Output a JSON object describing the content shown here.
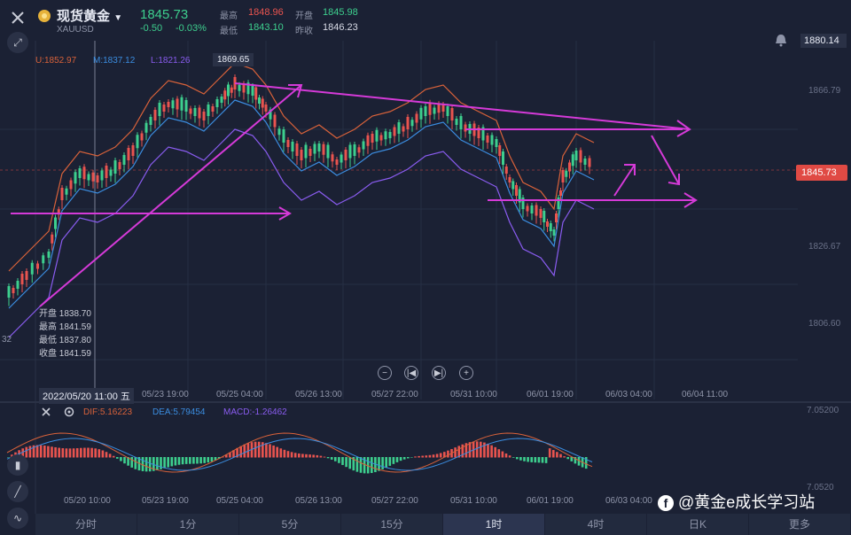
{
  "header": {
    "name": "现货黄金",
    "code": "XAUUSD",
    "price": "1845.73",
    "change": "-0.50",
    "change_pct": "-0.03%",
    "high_label": "最高",
    "high": "1848.96",
    "open_label": "开盘",
    "open": "1845.98",
    "low_label": "最低",
    "low": "1843.10",
    "prev_close_label": "昨收",
    "prev_close": "1846.23"
  },
  "indicators": {
    "upper": "U:1852.97",
    "middle": "M:1837.12",
    "lower": "L:1821.26",
    "hover_price": "1869.65"
  },
  "price_axis": {
    "top_tag": "1880.14",
    "ticks": [
      "1866.79",
      "1826.67",
      "1806.60"
    ],
    "current_tag": "1845.73",
    "left_partial": "32"
  },
  "ohlc_tooltip": {
    "open": "开盘 1838.70",
    "high": "最高 1841.59",
    "low": "最低 1837.80",
    "close": "收盘 1841.59"
  },
  "time_axis": {
    "cursor": "2022/05/20 11:00 五",
    "labels": [
      "05/23 19:00",
      "05/25 04:00",
      "05/26 13:00",
      "05/27 22:00",
      "05/31 10:00",
      "06/01 19:00",
      "06/03 04:00",
      "06/04 11:00"
    ]
  },
  "macd": {
    "dif": "DIF:5.16223",
    "dea": "DEA:5.79454",
    "macd": "MACD:-1.26462",
    "axis_top": "7.05200",
    "axis_bottom": "7.0520"
  },
  "macd_time_axis": [
    "05/20 10:00",
    "05/23 19:00",
    "05/25 04:00",
    "05/26 13:00",
    "05/27 22:00",
    "05/31 10:00",
    "06/01 19:00",
    "06/03 04:00"
  ],
  "tabs": [
    "分时",
    "1分",
    "5分",
    "15分",
    "1时",
    "4时",
    "日K",
    "更多"
  ],
  "active_tab": 4,
  "watermark": "@黄金e成长学习站",
  "colors": {
    "up": "#e9544f",
    "down": "#3dcf8e",
    "annotation": "#d53ad8",
    "bb_upper": "#d9623a",
    "bb_mid": "#3b8de0",
    "bb_lower": "#8a5cf0"
  }
}
